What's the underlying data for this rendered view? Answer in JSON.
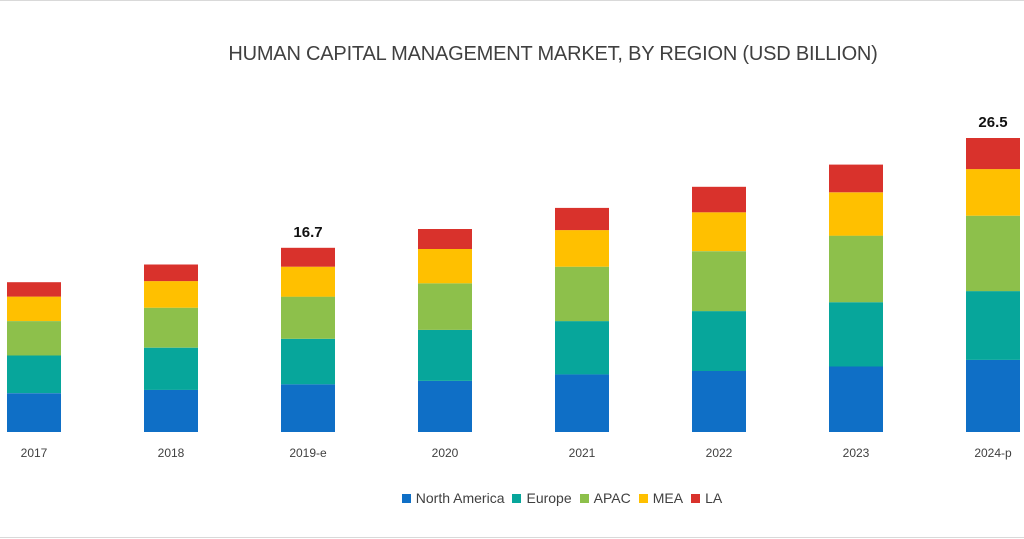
{
  "chart_data": {
    "type": "bar",
    "stacked": true,
    "title": "HUMAN CAPITAL MANAGEMENT  MARKET, BY REGION (USD BILLION)",
    "xlabel": "",
    "ylabel": "",
    "ylim": [
      0,
      26.5
    ],
    "grid": false,
    "legend_position": "bottom",
    "categories": [
      "2017",
      "2018",
      "2019-e",
      "2020",
      "2021",
      "2022",
      "2023",
      "2024-p"
    ],
    "series": [
      {
        "name": "North America",
        "color": "#0f6fc6",
        "values": [
          3.5,
          3.8,
          4.3,
          4.6,
          5.2,
          5.5,
          5.9,
          6.5
        ]
      },
      {
        "name": "Europe",
        "color": "#07a69b",
        "values": [
          3.4,
          3.8,
          4.1,
          4.6,
          4.8,
          5.4,
          5.8,
          6.2
        ]
      },
      {
        "name": "APAC",
        "color": "#8dc04b",
        "values": [
          3.1,
          3.6,
          3.8,
          4.2,
          4.9,
          5.4,
          6.0,
          6.8
        ]
      },
      {
        "name": "MEA",
        "color": "#ffc000",
        "values": [
          2.2,
          2.4,
          2.7,
          3.1,
          3.3,
          3.5,
          3.9,
          4.2
        ]
      },
      {
        "name": "LA",
        "color": "#d9322c",
        "values": [
          1.3,
          1.5,
          1.7,
          1.8,
          2.0,
          2.3,
          2.5,
          2.8
        ]
      }
    ],
    "data_labels": {
      "2019-e": "16.7",
      "2024-p": "26.5"
    }
  }
}
